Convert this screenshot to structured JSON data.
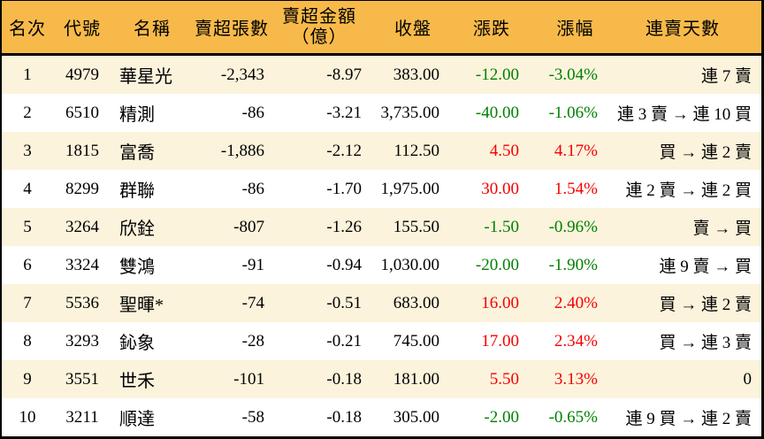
{
  "colors": {
    "header_bg": "#f7ba4a",
    "row_alt_bg": "#fcf3dc",
    "row_bg": "#ffffff",
    "border": "#000000",
    "text": "#000000",
    "up": "#f50000",
    "down": "#008000"
  },
  "chart_data": {
    "type": "table",
    "columns": [
      {
        "key": "rank",
        "label": "名次"
      },
      {
        "key": "code",
        "label": "代號"
      },
      {
        "key": "name",
        "label": "名稱"
      },
      {
        "key": "sell_volume",
        "label": "賣超張數"
      },
      {
        "key": "sell_amount",
        "label": "賣超金額",
        "label2": "（億）"
      },
      {
        "key": "close",
        "label": "收盤"
      },
      {
        "key": "change",
        "label": "漲跌"
      },
      {
        "key": "change_pct",
        "label": "漲幅"
      },
      {
        "key": "streak",
        "label": "連賣天數"
      }
    ],
    "rows": [
      [
        "1",
        "4979",
        "華星光",
        "-2,343",
        "-8.97",
        "383.00",
        "-12.00",
        "-3.04%",
        "連 7 賣"
      ],
      [
        "2",
        "6510",
        "精測",
        "-86",
        "-3.21",
        "3,735.00",
        "-40.00",
        "-1.06%",
        "連 3 賣 → 連 10 買"
      ],
      [
        "3",
        "1815",
        "富喬",
        "-1,886",
        "-2.12",
        "112.50",
        "4.50",
        "4.17%",
        "買 → 連 2 賣"
      ],
      [
        "4",
        "8299",
        "群聯",
        "-86",
        "-1.70",
        "1,975.00",
        "30.00",
        "1.54%",
        "連 2 賣 → 連 2 買"
      ],
      [
        "5",
        "3264",
        "欣銓",
        "-807",
        "-1.26",
        "155.50",
        "-1.50",
        "-0.96%",
        "賣 → 買"
      ],
      [
        "6",
        "3324",
        "雙鴻",
        "-91",
        "-0.94",
        "1,030.00",
        "-20.00",
        "-1.90%",
        "連 9 賣 → 買"
      ],
      [
        "7",
        "5536",
        "聖暉*",
        "-74",
        "-0.51",
        "683.00",
        "16.00",
        "2.40%",
        "買 → 連 2 賣"
      ],
      [
        "8",
        "3293",
        "鈊象",
        "-28",
        "-0.21",
        "745.00",
        "17.00",
        "2.34%",
        "買 → 連 3 賣"
      ],
      [
        "9",
        "3551",
        "世禾",
        "-101",
        "-0.18",
        "181.00",
        "5.50",
        "3.13%",
        "0"
      ],
      [
        "10",
        "3211",
        "順達",
        "-58",
        "-0.18",
        "305.00",
        "-2.00",
        "-0.65%",
        "連 9 買 → 連 2 賣"
      ]
    ]
  }
}
